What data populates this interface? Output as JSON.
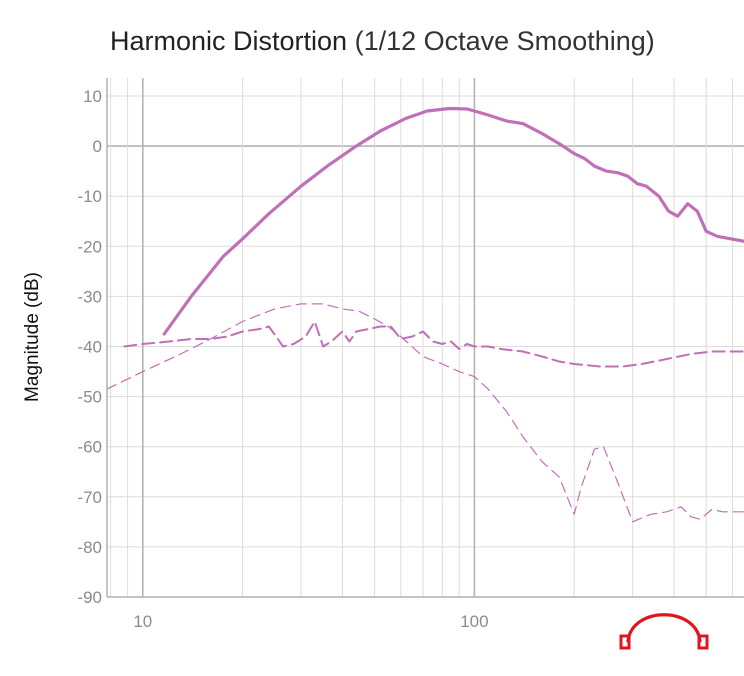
{
  "chart_data": {
    "type": "line",
    "title": "Harmonic Distortion",
    "subtitle": "(1/12 Octave Smoothing)",
    "xlabel": "",
    "ylabel": "Magnitude (dB)",
    "x_scale": "log",
    "xlim": [
      7.8,
      650
    ],
    "ylim": [
      -90,
      12
    ],
    "xticks": [
      10,
      100
    ],
    "xtick_labels": [
      "10",
      "100"
    ],
    "yticks": [
      10,
      0,
      -10,
      -20,
      -30,
      -40,
      -50,
      -60,
      -70,
      -80,
      -90
    ],
    "ytick_labels": [
      "10",
      "0",
      "-10",
      "-20",
      "-30",
      "-40",
      "-50",
      "-60",
      "-70",
      "-80",
      "-90"
    ],
    "grid": true,
    "legend": "none",
    "series": [
      {
        "style": "solid-thick",
        "color": "#c070b8",
        "points": [
          [
            11.6,
            -37.5
          ],
          [
            14,
            -30
          ],
          [
            17.5,
            -22
          ],
          [
            20,
            -18.5
          ],
          [
            24,
            -13.5
          ],
          [
            30,
            -8
          ],
          [
            36,
            -4
          ],
          [
            44,
            0
          ],
          [
            52,
            3
          ],
          [
            62,
            5.5
          ],
          [
            72,
            7
          ],
          [
            84,
            7.5
          ],
          [
            95,
            7.4
          ],
          [
            100,
            7
          ],
          [
            110,
            6.2
          ],
          [
            125,
            5
          ],
          [
            140,
            4.5
          ],
          [
            160,
            2.5
          ],
          [
            180,
            0.5
          ],
          [
            200,
            -1.5
          ],
          [
            215,
            -2.5
          ],
          [
            230,
            -4
          ],
          [
            250,
            -5
          ],
          [
            270,
            -5.3
          ],
          [
            290,
            -6
          ],
          [
            310,
            -7.5
          ],
          [
            330,
            -8
          ],
          [
            360,
            -10
          ],
          [
            385,
            -13
          ],
          [
            410,
            -14
          ],
          [
            440,
            -11.5
          ],
          [
            470,
            -13
          ],
          [
            500,
            -17
          ],
          [
            540,
            -18
          ],
          [
            650,
            -19
          ]
        ]
      },
      {
        "style": "dashed",
        "color": "#c070b8",
        "points": [
          [
            8.8,
            -40
          ],
          [
            10,
            -39.5
          ],
          [
            12,
            -39
          ],
          [
            14,
            -38.5
          ],
          [
            16,
            -38.5
          ],
          [
            18,
            -38
          ],
          [
            20,
            -37
          ],
          [
            22.5,
            -36.5
          ],
          [
            24,
            -36
          ],
          [
            26.5,
            -40
          ],
          [
            28.5,
            -39.5
          ],
          [
            31,
            -38
          ],
          [
            33,
            -35
          ],
          [
            35,
            -40
          ],
          [
            37,
            -39
          ],
          [
            40,
            -37
          ],
          [
            42,
            -39
          ],
          [
            44,
            -37
          ],
          [
            48,
            -36.5
          ],
          [
            52,
            -36
          ],
          [
            56,
            -36
          ],
          [
            60,
            -38.5
          ],
          [
            65,
            -38
          ],
          [
            70,
            -37
          ],
          [
            75,
            -39
          ],
          [
            80,
            -39.5
          ],
          [
            85,
            -39
          ],
          [
            90,
            -40.5
          ],
          [
            95,
            -39.5
          ],
          [
            100,
            -40
          ],
          [
            110,
            -40
          ],
          [
            120,
            -40.5
          ],
          [
            140,
            -41
          ],
          [
            160,
            -42
          ],
          [
            180,
            -43
          ],
          [
            200,
            -43.5
          ],
          [
            240,
            -44
          ],
          [
            280,
            -44
          ],
          [
            320,
            -43.5
          ],
          [
            380,
            -42.5
          ],
          [
            450,
            -41.5
          ],
          [
            520,
            -41
          ],
          [
            650,
            -41
          ]
        ]
      },
      {
        "style": "dashed-thin",
        "color": "#c070b8",
        "points": [
          [
            7.8,
            -48.5
          ],
          [
            10,
            -45
          ],
          [
            13,
            -41.5
          ],
          [
            16,
            -38.5
          ],
          [
            20,
            -35
          ],
          [
            25,
            -32.5
          ],
          [
            30,
            -31.5
          ],
          [
            35,
            -31.5
          ],
          [
            40,
            -32.5
          ],
          [
            45,
            -33
          ],
          [
            50,
            -34.5
          ],
          [
            55,
            -36
          ],
          [
            60,
            -38
          ],
          [
            70,
            -42
          ],
          [
            80,
            -43.5
          ],
          [
            90,
            -45
          ],
          [
            100,
            -46
          ],
          [
            110,
            -48.5
          ],
          [
            125,
            -53
          ],
          [
            140,
            -58
          ],
          [
            160,
            -63
          ],
          [
            180,
            -66
          ],
          [
            200,
            -73.5
          ],
          [
            210,
            -68
          ],
          [
            230,
            -60.5
          ],
          [
            245,
            -60
          ],
          [
            270,
            -67
          ],
          [
            300,
            -75
          ],
          [
            340,
            -73.5
          ],
          [
            380,
            -73
          ],
          [
            420,
            -72
          ],
          [
            450,
            -74
          ],
          [
            480,
            -74.5
          ],
          [
            520,
            -72.5
          ],
          [
            560,
            -73
          ],
          [
            650,
            -73
          ]
        ]
      }
    ]
  },
  "logo": {
    "name": "headphone-logo",
    "color": "#e0161e"
  }
}
